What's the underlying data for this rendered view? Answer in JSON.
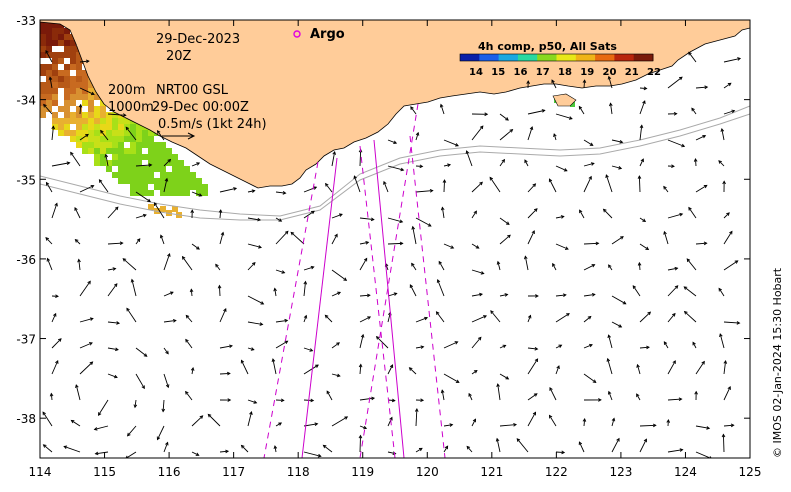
{
  "date_label": "29-Dec-2023",
  "time_label": "20Z",
  "depth_shallow_label": "200m",
  "depth_deep_label": "1000m",
  "product_label": "NRT00 GSL",
  "product_time_label": "29-Dec 00:00Z",
  "scale_arrow_label": "0.5m/s (1kt 24h)",
  "argo_label": "Argo",
  "argo_color": "#e000e0",
  "colorbar": {
    "title": "4h comp, p50, All Sats",
    "ticks": [
      "14",
      "15",
      "16",
      "17",
      "18",
      "19",
      "20",
      "21",
      "22"
    ],
    "colors": [
      "#0a1fa8",
      "#1a5ee8",
      "#1aa8e0",
      "#28d8a0",
      "#8ad81e",
      "#e8e818",
      "#f0b418",
      "#e86a10",
      "#b8250c",
      "#7a1a0a"
    ]
  },
  "credit": "© IMOS 02-Jan-2024 15:30 Hobart",
  "axes": {
    "x_ticks": [
      "114",
      "115",
      "116",
      "117",
      "118",
      "119",
      "120",
      "121",
      "122",
      "123",
      "124",
      "125"
    ],
    "y_ticks": [
      "-33",
      "-34",
      "-35",
      "-36",
      "-37",
      "-38"
    ]
  },
  "colors": {
    "land": "#ffcc99",
    "track_solid": "#cc00cc",
    "track_dashed": "#cc00cc",
    "isobath": "#aaaaaa"
  }
}
